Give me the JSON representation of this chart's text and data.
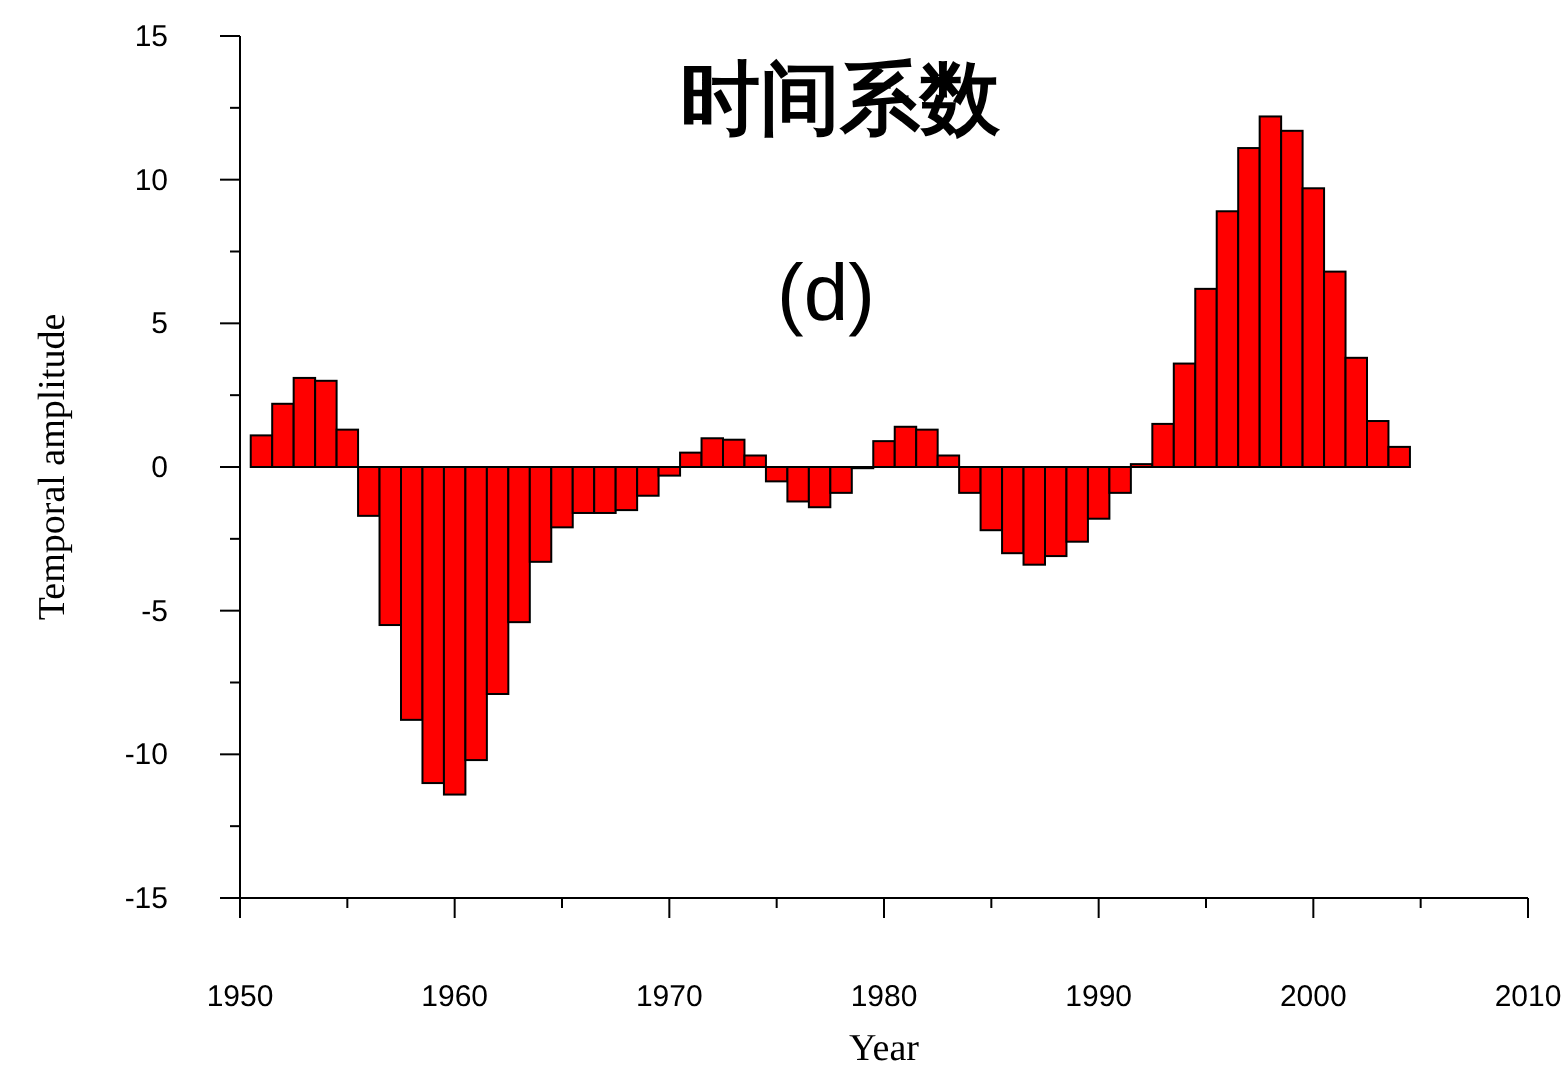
{
  "chart_data": {
    "type": "bar",
    "title": "时间系数",
    "subtitle": "(d)",
    "xlabel": "Year",
    "ylabel": "Temporal amplitude",
    "x": [
      1951,
      1952,
      1953,
      1954,
      1955,
      1956,
      1957,
      1958,
      1959,
      1960,
      1961,
      1962,
      1963,
      1964,
      1965,
      1966,
      1967,
      1968,
      1969,
      1970,
      1971,
      1972,
      1973,
      1974,
      1975,
      1976,
      1977,
      1978,
      1979,
      1980,
      1981,
      1982,
      1983,
      1984,
      1985,
      1986,
      1987,
      1988,
      1989,
      1990,
      1991,
      1992,
      1993,
      1994,
      1995,
      1996,
      1997,
      1998,
      1999,
      2000,
      2001,
      2002,
      2003,
      2004
    ],
    "values": [
      1.1,
      2.2,
      3.1,
      3.0,
      1.3,
      -1.7,
      -5.5,
      -8.8,
      -11.0,
      -11.4,
      -10.2,
      -7.9,
      -5.4,
      -3.3,
      -2.1,
      -1.6,
      -1.6,
      -1.5,
      -1.0,
      -0.3,
      0.5,
      1.0,
      0.95,
      0.4,
      -0.5,
      -1.2,
      -1.4,
      -0.9,
      0,
      0.9,
      1.4,
      1.3,
      0.4,
      -0.9,
      -2.2,
      -3.0,
      -3.4,
      -3.1,
      -2.6,
      -1.8,
      -0.9,
      0.1,
      1.5,
      3.6,
      6.2,
      8.9,
      11.1,
      12.2,
      11.7,
      9.7,
      6.8,
      3.8,
      1.6,
      0.7
    ],
    "color": "#ff0000",
    "xlim": [
      1950,
      2010
    ],
    "xticks": [
      1950,
      1960,
      1970,
      1980,
      1990,
      2000,
      2010
    ],
    "ylim": [
      -15,
      15
    ],
    "yticks": [
      -15,
      -10,
      -5,
      0,
      5,
      10,
      15
    ]
  }
}
